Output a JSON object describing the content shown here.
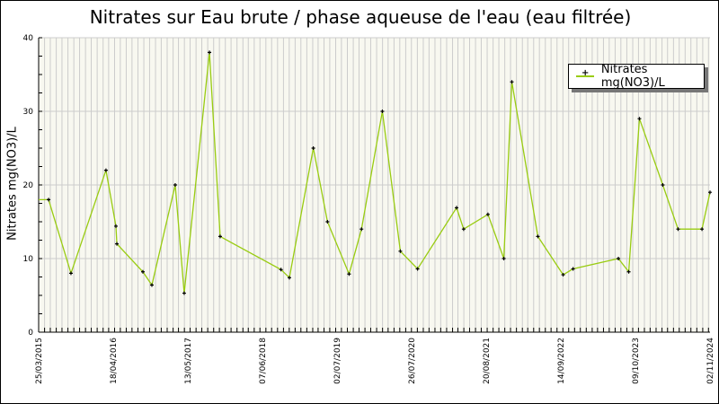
{
  "chart_data": {
    "type": "line",
    "title": "Nitrates sur Eau brute / phase aqueuse de l'eau (eau filtrée)",
    "xlabel": "",
    "ylabel": "Nitrates mg(NO3)/L",
    "xlim": [
      "2015-03-25",
      "2024-11-02"
    ],
    "ylim": [
      0,
      40
    ],
    "x_tick_labels": [
      "25/03/2015",
      "18/04/2016",
      "13/05/2017",
      "07/06/2018",
      "02/07/2019",
      "26/07/2020",
      "20/08/2021",
      "14/09/2022",
      "09/10/2023",
      "02/11/2024"
    ],
    "y_tick_labels": [
      "0",
      "10",
      "20",
      "30",
      "40"
    ],
    "grid": true,
    "legend_position": "top-right",
    "colors": {
      "line": "#99cc11",
      "marker": "#000000",
      "plot_bg": "#f8f8f0",
      "grid": "#cccccc"
    },
    "series": [
      {
        "name": "Nitrates mg(NO3)/L",
        "x": [
          "2015-03-25",
          "2015-05-16",
          "2015-09-10",
          "2016-03-11",
          "2016-05-02",
          "2016-05-07",
          "2016-09-20",
          "2016-11-06",
          "2017-03-08",
          "2017-04-24",
          "2017-09-03",
          "2017-10-29",
          "2018-09-12",
          "2018-10-26",
          "2019-02-28",
          "2019-05-13",
          "2019-09-03",
          "2019-11-07",
          "2020-02-24",
          "2020-05-28",
          "2020-08-26",
          "2021-03-18",
          "2021-04-24",
          "2021-08-29",
          "2021-11-20",
          "2022-01-01",
          "2022-05-17",
          "2022-09-26",
          "2022-11-17",
          "2023-07-12",
          "2023-09-04",
          "2023-10-30",
          "2024-02-29",
          "2024-05-19",
          "2024-09-21",
          "2024-11-02"
        ],
        "y": [
          18,
          18,
          8,
          22,
          14.4,
          12,
          8.2,
          6.4,
          20,
          5.3,
          38,
          13,
          8.5,
          7.4,
          25,
          15,
          7.9,
          14,
          30,
          11,
          8.6,
          16.9,
          14,
          16,
          10,
          34,
          13,
          7.8,
          8.6,
          10,
          8.2,
          29,
          20,
          14,
          14,
          19
        ]
      }
    ]
  }
}
